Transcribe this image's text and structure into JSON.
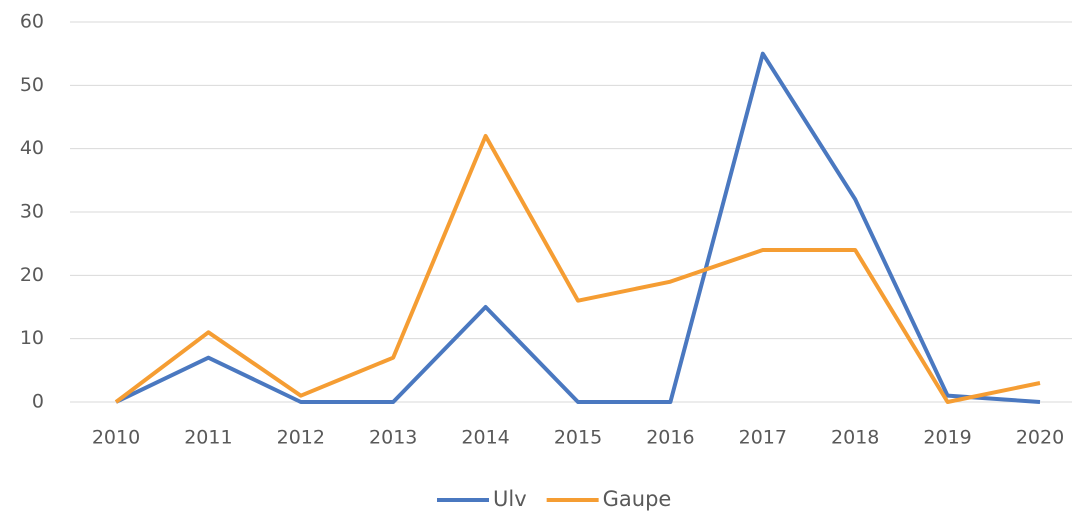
{
  "chart_data": {
    "type": "line",
    "categories": [
      "2010",
      "2011",
      "2012",
      "2013",
      "2014",
      "2015",
      "2016",
      "2017",
      "2018",
      "2019",
      "2020"
    ],
    "series": [
      {
        "name": "Ulv",
        "color": "#4a78c0",
        "values": [
          0,
          7,
          0,
          0,
          15,
          0,
          0,
          55,
          32,
          1,
          0
        ]
      },
      {
        "name": "Gaupe",
        "color": "#f59d33",
        "values": [
          0,
          11,
          1,
          7,
          42,
          16,
          19,
          24,
          24,
          0,
          3
        ]
      }
    ],
    "ylim": [
      0,
      60
    ],
    "yticks": [
      0,
      10,
      20,
      30,
      40,
      50,
      60
    ],
    "grid": true,
    "legend": "bottom"
  }
}
